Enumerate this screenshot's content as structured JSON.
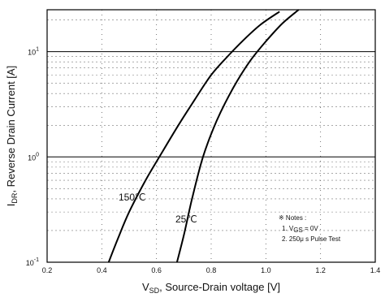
{
  "chart_data": {
    "type": "line",
    "xlabel": {
      "prefix": "V",
      "sub": "SD",
      "suffix": ", Source-Drain voltage [V]"
    },
    "ylabel": {
      "prefix": "I",
      "sub": "DR",
      "suffix": ", Reverse Drain Current [A]"
    },
    "xlim": [
      0.2,
      1.4
    ],
    "ylim": [
      0.1,
      25
    ],
    "y_scale": "log",
    "x_ticks": [
      "0.2",
      "0.4",
      "0.6",
      "0.8",
      "1.0",
      "1.2",
      "1.4"
    ],
    "y_ticks": [
      {
        "base": "10",
        "exp": "-1"
      },
      {
        "base": "10",
        "exp": "0"
      },
      {
        "base": "10",
        "exp": "1"
      }
    ],
    "grid": true,
    "series": [
      {
        "name": "150℃",
        "x": [
          0.425,
          0.46,
          0.5,
          0.56,
          0.62,
          0.68,
          0.74,
          0.8,
          0.86,
          0.92,
          0.98,
          1.05
        ],
        "y": [
          0.1,
          0.17,
          0.3,
          0.6,
          1.1,
          2.0,
          3.5,
          6.0,
          9.0,
          13.0,
          18.0,
          24.0
        ]
      },
      {
        "name": "25℃",
        "x": [
          0.675,
          0.7,
          0.73,
          0.77,
          0.82,
          0.88,
          0.94,
          1.0,
          1.06,
          1.12
        ],
        "y": [
          0.1,
          0.18,
          0.4,
          1.0,
          2.2,
          4.5,
          8.0,
          12.5,
          18.5,
          25.0
        ]
      }
    ],
    "notes": {
      "title": "※ Notes :",
      "line1_prefix": "1. V",
      "line1_sub": "GS",
      "line1_suffix": " = 0V",
      "line2": "2. 250μ s Pulse Test"
    }
  }
}
